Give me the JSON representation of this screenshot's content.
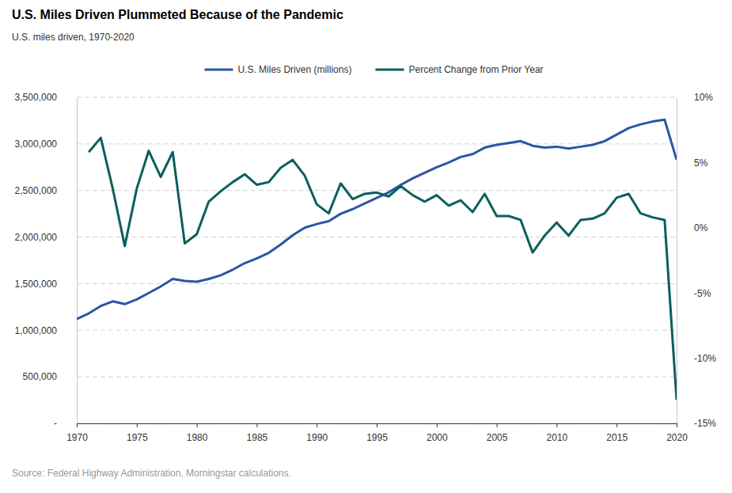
{
  "chart_data": {
    "type": "line",
    "title": "U.S. Miles Driven Plummeted Because of the Pandemic",
    "subtitle": "U.S. miles driven, 1970-2020",
    "source": "Source: Federal Highway Administration, Morningstar calculations.",
    "x": [
      1970,
      1971,
      1972,
      1973,
      1974,
      1975,
      1976,
      1977,
      1978,
      1979,
      1980,
      1981,
      1982,
      1983,
      1984,
      1985,
      1986,
      1987,
      1988,
      1989,
      1990,
      1991,
      1992,
      1993,
      1994,
      1995,
      1996,
      1997,
      1998,
      1999,
      2000,
      2001,
      2002,
      2003,
      2004,
      2005,
      2006,
      2007,
      2008,
      2009,
      2010,
      2011,
      2012,
      2013,
      2014,
      2015,
      2016,
      2017,
      2018,
      2019,
      2020
    ],
    "xlim": [
      1970,
      2020
    ],
    "xticks": [
      1970,
      1975,
      1980,
      1985,
      1990,
      1995,
      2000,
      2005,
      2010,
      2015,
      2020
    ],
    "ylim": [
      0,
      3500000
    ],
    "yticks": [
      {
        "value": 0,
        "label": "-"
      },
      {
        "value": 500000,
        "label": "500,000"
      },
      {
        "value": 1000000,
        "label": "1,000,000"
      },
      {
        "value": 1500000,
        "label": "1,500,000"
      },
      {
        "value": 2000000,
        "label": "2,000,000"
      },
      {
        "value": 2500000,
        "label": "2,500,000"
      },
      {
        "value": 3000000,
        "label": "3,000,000"
      },
      {
        "value": 3500000,
        "label": "3,500,000"
      }
    ],
    "y2lim": [
      -15,
      10
    ],
    "y2ticks": [
      {
        "value": -15,
        "label": "-15%"
      },
      {
        "value": -10,
        "label": "-10%"
      },
      {
        "value": -5,
        "label": "-5%"
      },
      {
        "value": 0,
        "label": "0%"
      },
      {
        "value": 5,
        "label": "5%"
      },
      {
        "value": 10,
        "label": "10%"
      }
    ],
    "grid": true,
    "legend": "top",
    "series": [
      {
        "name": "U.S. Miles Driven (millions)",
        "color": "#2c55a6",
        "values": [
          1120000,
          1180000,
          1260000,
          1310000,
          1280000,
          1330000,
          1400000,
          1470000,
          1550000,
          1530000,
          1520000,
          1550000,
          1590000,
          1650000,
          1720000,
          1770000,
          1830000,
          1920000,
          2020000,
          2100000,
          2140000,
          2170000,
          2250000,
          2300000,
          2360000,
          2420000,
          2480000,
          2560000,
          2630000,
          2690000,
          2750000,
          2800000,
          2860000,
          2890000,
          2960000,
          2990000,
          3010000,
          3030000,
          2980000,
          2960000,
          2970000,
          2950000,
          2970000,
          2990000,
          3030000,
          3100000,
          3170000,
          3210000,
          3240000,
          3260000,
          2830000
        ]
      },
      {
        "name": "Percent Change from Prior Year",
        "color": "#0b5f5c",
        "axis": "y2",
        "values": [
          null,
          5.8,
          6.9,
          3.0,
          -1.4,
          3.0,
          5.9,
          3.9,
          5.8,
          -1.2,
          -0.5,
          2.0,
          2.8,
          3.5,
          4.1,
          3.3,
          3.5,
          4.6,
          5.2,
          4.0,
          1.8,
          1.1,
          3.4,
          2.2,
          2.6,
          2.7,
          2.4,
          3.2,
          2.5,
          2.0,
          2.5,
          1.7,
          2.1,
          1.2,
          2.6,
          0.9,
          0.9,
          0.6,
          -1.9,
          -0.6,
          0.4,
          -0.6,
          0.6,
          0.7,
          1.1,
          2.3,
          2.6,
          1.1,
          0.8,
          0.6,
          -13.2
        ]
      }
    ]
  }
}
